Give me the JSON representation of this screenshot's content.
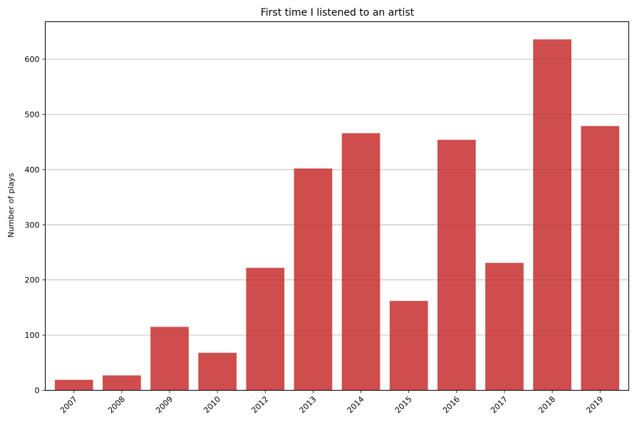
{
  "chart_data": {
    "type": "bar",
    "title": "First time I listened to an artist",
    "xlabel": "",
    "ylabel": "Number of plays",
    "categories": [
      "2007",
      "2008",
      "2009",
      "2010",
      "2012",
      "2013",
      "2014",
      "2015",
      "2016",
      "2017",
      "2018",
      "2019"
    ],
    "values": [
      19,
      27,
      115,
      68,
      222,
      402,
      466,
      162,
      454,
      231,
      636,
      479
    ],
    "ylim": [
      0,
      668
    ],
    "yticks": [
      0,
      100,
      200,
      300,
      400,
      500,
      600
    ],
    "grid": "horizontal",
    "bar_color": "#c72e2e",
    "grid_color": "#b0b0b0",
    "xtick_rotation": 45
  }
}
